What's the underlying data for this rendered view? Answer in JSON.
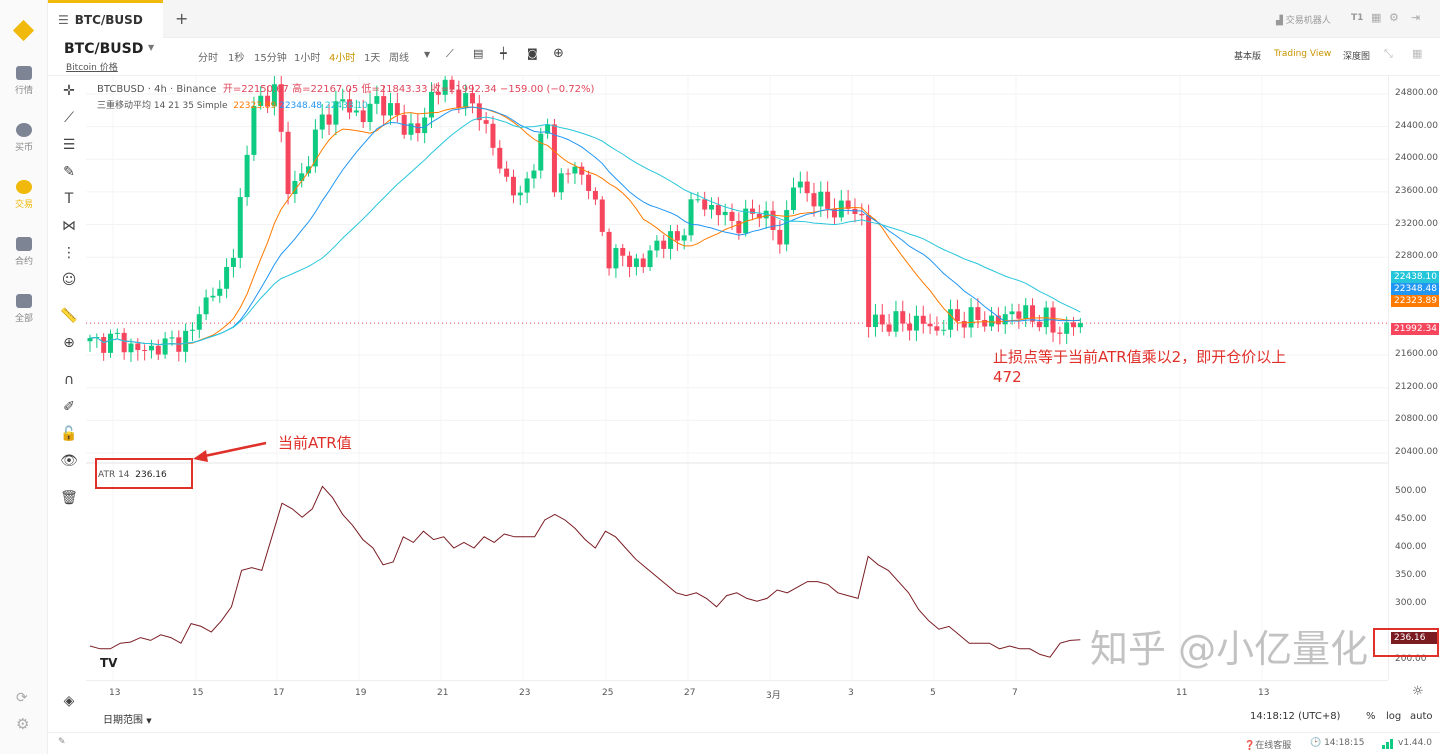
{
  "nav": {
    "items": [
      {
        "label": "行情"
      },
      {
        "label": "买币"
      },
      {
        "label": "交易",
        "active": true
      },
      {
        "label": "合约"
      },
      {
        "label": "全部"
      }
    ]
  },
  "tabs": {
    "active": "BTC/BUSD",
    "add": "+"
  },
  "topright": {
    "bot": "交易机器人",
    "t1": "T1"
  },
  "symbol": {
    "name": "BTC/BUSD",
    "sub": "Bitcoin 价格"
  },
  "timeframes": [
    "分时",
    "1秒",
    "15分钟",
    "1小时",
    "4小时",
    "1天",
    "周线"
  ],
  "active_timeframe": "4小时",
  "views": {
    "basic": "基本版",
    "tv": "Trading View",
    "depth": "深度图"
  },
  "legend": {
    "title": "BTCBUSD · 4h · Binance",
    "open": "开=22150.67",
    "high": "高=22167.05",
    "low": "低=21843.33",
    "close": "收=21992.34",
    "change": "−159.00 (−0.72%)",
    "ma_label": "三重移动平均 14 21 35 Simple",
    "ma1": "22323.89",
    "ma2": "22348.48",
    "ma3": "22438.10"
  },
  "atr_legend": {
    "label": "ATR 14",
    "value": "236.16"
  },
  "price_axis": [
    "24800.00",
    "24400.00",
    "24000.00",
    "23600.00",
    "23200.00",
    "22800.00",
    "21600.00",
    "21200.00",
    "20800.00",
    "20400.00"
  ],
  "price_badges": [
    {
      "v": "22438.10",
      "color": "#26c6da"
    },
    {
      "v": "22348.48",
      "color": "#2196f3"
    },
    {
      "v": "22323.89",
      "color": "#ff7a00"
    },
    {
      "v": "21992.34",
      "color": "#f6465d"
    }
  ],
  "atr_axis": [
    "500.00",
    "450.00",
    "400.00",
    "350.00",
    "300.00",
    "200.00"
  ],
  "atr_badge": "236.16",
  "x_axis": [
    "13",
    "15",
    "17",
    "19",
    "21",
    "23",
    "25",
    "27",
    "3月",
    "3",
    "5",
    "7",
    "11",
    "13"
  ],
  "axis_controls": {
    "time": "14:18:12 (UTC+8)",
    "pct": "%",
    "log": "log",
    "auto": "auto"
  },
  "date_range": "日期范围",
  "status": {
    "support": "在线客服",
    "time": "14:18:15",
    "version": "v1.44.0"
  },
  "annotations": {
    "stop_text": "止损点等于当前ATR值乘以2，即开仓价以上",
    "stop_value": "472",
    "atr_note": "当前ATR值"
  },
  "watermark": "知乎 @小亿量化",
  "chart_data": [
    {
      "type": "candlestick",
      "title": "BTCBUSD 4h",
      "candles": 146,
      "ylim": [
        20400,
        25000
      ],
      "close_keypoints": [
        [
          0,
          21750
        ],
        [
          4,
          21800
        ],
        [
          7,
          21650
        ],
        [
          10,
          21700
        ],
        [
          15,
          21850
        ],
        [
          16,
          22200
        ],
        [
          19,
          22400
        ],
        [
          21,
          22900
        ],
        [
          23,
          24000
        ],
        [
          24,
          24800
        ],
        [
          26,
          24600
        ],
        [
          27,
          25000
        ],
        [
          29,
          23600
        ],
        [
          31,
          23800
        ],
        [
          34,
          24500
        ],
        [
          37,
          24700
        ],
        [
          40,
          24500
        ],
        [
          42,
          24750
        ],
        [
          45,
          24500
        ],
        [
          48,
          24300
        ],
        [
          50,
          24800
        ],
        [
          52,
          24900
        ],
        [
          55,
          24700
        ],
        [
          57,
          24600
        ],
        [
          60,
          23900
        ],
        [
          63,
          23500
        ],
        [
          65,
          24000
        ],
        [
          67,
          24400
        ],
        [
          68,
          23700
        ],
        [
          71,
          23900
        ],
        [
          73,
          23700
        ],
        [
          75,
          23100
        ],
        [
          76,
          22800
        ],
        [
          78,
          22800
        ],
        [
          81,
          22700
        ],
        [
          83,
          23000
        ],
        [
          86,
          23000
        ],
        [
          88,
          23400
        ],
        [
          89,
          23500
        ],
        [
          92,
          23350
        ],
        [
          95,
          23200
        ],
        [
          98,
          23400
        ],
        [
          101,
          23000
        ],
        [
          103,
          23700
        ],
        [
          105,
          23600
        ],
        [
          108,
          23400
        ],
        [
          111,
          23400
        ],
        [
          113,
          23300
        ],
        [
          114,
          22000
        ],
        [
          116,
          22000
        ],
        [
          119,
          22000
        ],
        [
          122,
          22000
        ],
        [
          124,
          21900
        ],
        [
          126,
          22050
        ],
        [
          130,
          22050
        ],
        [
          133,
          22000
        ],
        [
          135,
          22150
        ],
        [
          138,
          22050
        ],
        [
          140,
          22050
        ],
        [
          141,
          21900
        ],
        [
          143,
          21950
        ],
        [
          145,
          21992.34
        ]
      ],
      "ma_periods": [
        14,
        21,
        35
      ],
      "ma_colors": [
        "#ff7a00",
        "#2196f3",
        "#26c6da"
      ]
    },
    {
      "type": "line",
      "title": "ATR 14",
      "ylim": [
        200,
        500
      ],
      "values": [
        225,
        220,
        220,
        230,
        232,
        240,
        235,
        245,
        240,
        230,
        265,
        260,
        250,
        270,
        295,
        360,
        365,
        360,
        420,
        480,
        470,
        455,
        470,
        510,
        490,
        460,
        440,
        415,
        400,
        370,
        375,
        420,
        410,
        430,
        415,
        420,
        400,
        410,
        400,
        420,
        410,
        425,
        420,
        420,
        420,
        450,
        460,
        450,
        435,
        415,
        400,
        430,
        420,
        400,
        380,
        365,
        350,
        335,
        320,
        315,
        320,
        310,
        295,
        315,
        320,
        310,
        305,
        310,
        325,
        320,
        330,
        340,
        340,
        335,
        320,
        315,
        310,
        385,
        370,
        360,
        340,
        320,
        290,
        270,
        255,
        260,
        245,
        230,
        230,
        230,
        220,
        225,
        220,
        220,
        210,
        205,
        230,
        235,
        236.16
      ]
    }
  ]
}
